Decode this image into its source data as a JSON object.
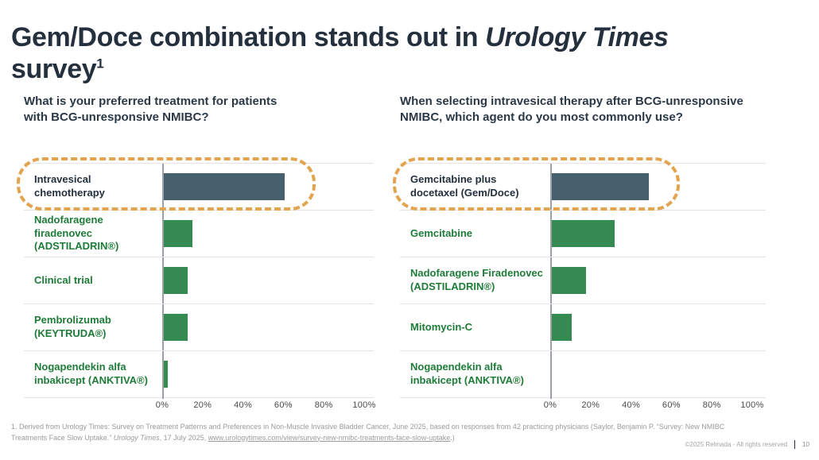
{
  "slide": {
    "title": {
      "part1": "Gem/Doce combination stands out in ",
      "italic": "Urology Times",
      "part2": " survey",
      "superscript": "1"
    },
    "footnote": {
      "part1": "1. Derived from Urology Times: Survey on Treatment Patterns and Preferences in Non-Muscle Invasive Bladder Cancer, June 2025, based on responses from 42 practicing physicians (Saylor, Benjamin P. “Survey: New NMIBC Treatments Face Slow Uptake.” ",
      "italic": "Urology Times",
      "part2": ", 17 July 2025, ",
      "link": "www.urologytimes.com/view/survey-new-nmibc-treatments-face-slow-uptake",
      "part3": ".)"
    },
    "footer": {
      "copyright": "©2025 Relmada - All rights reserved",
      "page_number": "10"
    },
    "colors": {
      "title_text": "#24303d",
      "green_label_text": "#1e7b38",
      "highlight_outline": "#e2a44e",
      "dark_bar": "#48606e",
      "green_bar": "#358a51",
      "gridline": "#e4e4e4",
      "axis_line": "#9aa0a6"
    }
  },
  "chart_data": [
    {
      "type": "bar",
      "orientation": "horizontal",
      "title": "What is your preferred treatment for patients with BCG-unresponsive NMIBC?",
      "categories": [
        "Intravesical chemotherapy",
        "Nadofaragene firadenovec (ADSTILADRIN®)",
        "Clinical trial",
        "Pembrolizumab (KEYTRUDA®)",
        "Nogapendekin alfa inbakicept (ANKTIVA®)"
      ],
      "values": [
        60,
        14,
        12,
        12,
        2
      ],
      "unit": "%",
      "xlim": [
        0,
        100
      ],
      "x_ticks": [
        "0%",
        "20%",
        "40%",
        "60%",
        "80%",
        "100%"
      ],
      "grid": "row-separators",
      "legend": "none",
      "highlight_index": 0,
      "bar_colors": [
        "#48606e",
        "#358a51",
        "#358a51",
        "#358a51",
        "#358a51"
      ]
    },
    {
      "type": "bar",
      "orientation": "horizontal",
      "title": "When selecting intravesical therapy after BCG-unresponsive NMIBC, which agent do you most commonly use?",
      "categories": [
        "Gemcitabine plus docetaxel (Gem/Doce)",
        "Gemcitabine",
        "Nadofaragene Firadenovec (ADSTILADRIN®)",
        "Mitomycin-C",
        "Nogapendekin alfa inbakicept (ANKTIVA®)"
      ],
      "values": [
        48,
        31,
        17,
        10,
        0
      ],
      "unit": "%",
      "xlim": [
        0,
        100
      ],
      "x_ticks": [
        "0%",
        "20%",
        "40%",
        "60%",
        "80%",
        "100%"
      ],
      "grid": "row-separators",
      "legend": "none",
      "highlight_index": 0,
      "bar_colors": [
        "#48606e",
        "#358a51",
        "#358a51",
        "#358a51",
        "#358a51"
      ]
    }
  ]
}
